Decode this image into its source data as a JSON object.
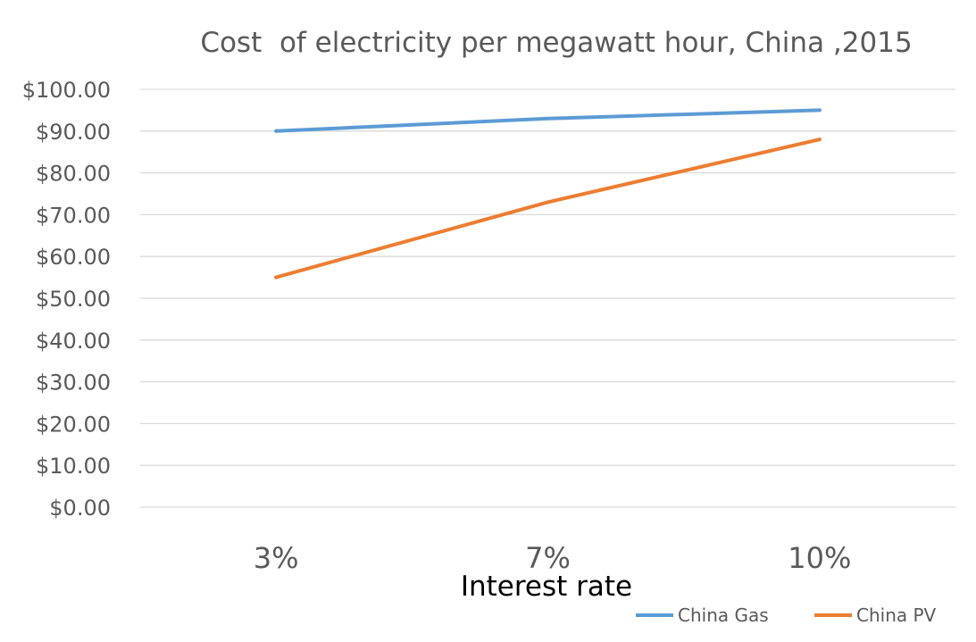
{
  "chart_data": {
    "type": "line",
    "title": "Cost  of electricity per megawatt hour, China ,2015",
    "xlabel": "Interest rate",
    "ylabel": "",
    "categories": [
      "3%",
      "7%",
      "10%"
    ],
    "ylim": [
      0,
      100
    ],
    "yticks": [
      0,
      10,
      20,
      30,
      40,
      50,
      60,
      70,
      80,
      90,
      100
    ],
    "ytick_labels": [
      "$0.00",
      "$10.00",
      "$20.00",
      "$30.00",
      "$40.00",
      "$50.00",
      "$60.00",
      "$70.00",
      "$80.00",
      "$90.00",
      "$100.00"
    ],
    "grid": true,
    "legend_position": "bottom-right",
    "series": [
      {
        "name": "China Gas",
        "values": [
          90,
          93,
          95
        ],
        "color": "#5b9bd5"
      },
      {
        "name": "China PV",
        "values": [
          55,
          73,
          88
        ],
        "color": "#ed7d31"
      }
    ]
  }
}
